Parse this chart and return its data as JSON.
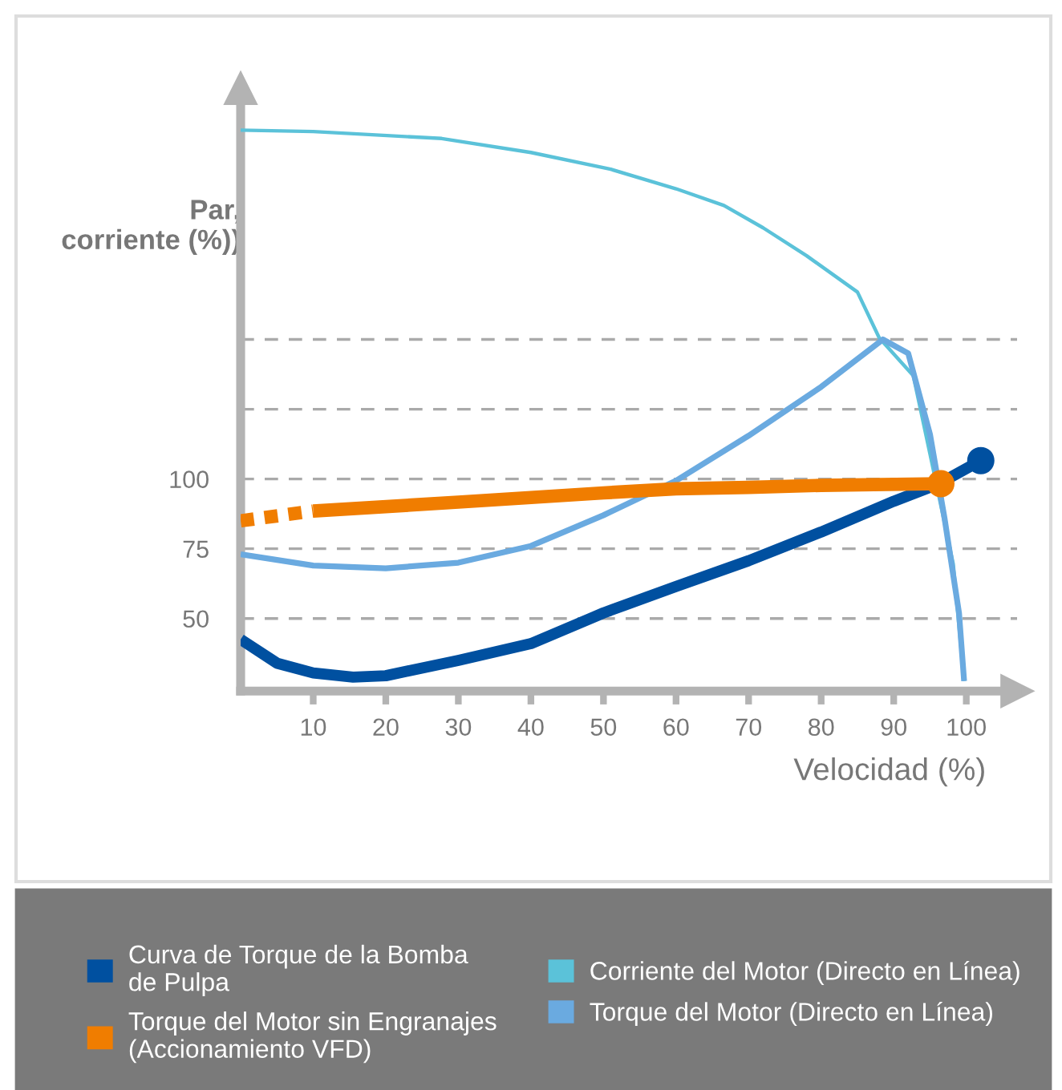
{
  "chart_data": {
    "type": "line",
    "xlabel": "Velocidad (%)",
    "ylabel": "Par,\ncorriente (%))",
    "xlim": [
      0,
      107
    ],
    "ylim": [
      24,
      240
    ],
    "xticks": [
      10,
      20,
      30,
      40,
      50,
      60,
      70,
      80,
      90,
      100
    ],
    "yticks": [
      50,
      75,
      100,
      {
        "value": 125,
        "label": null
      },
      {
        "value": 150,
        "label": null
      }
    ],
    "grid": "y",
    "legend": "bottom",
    "series": [
      {
        "name": "Curva de Torque de la Bomba\nde Pulpa",
        "color": "#0050a0",
        "x": [
          0,
          5,
          10,
          15.5,
          20,
          30,
          40,
          50,
          60,
          70,
          80,
          90,
          96,
          102
        ],
        "values": [
          42.5,
          34,
          30.5,
          29,
          29.5,
          35,
          41,
          52,
          61.5,
          70.7,
          81,
          92,
          98,
          106.6
        ]
      },
      {
        "name": "Torque del Motor sin Engranajes\n(Accionamiento VFD)",
        "color": "#f07d00",
        "x": [
          10,
          30,
          50,
          60,
          70,
          80,
          96.5
        ],
        "values": [
          88.5,
          91.7,
          95,
          96.5,
          97,
          97.7,
          98.3
        ]
      },
      {
        "name": "Corriente del Motor (Directo en Línea)",
        "color": "#5bc2d9",
        "x": [
          0,
          10,
          27.7,
          40,
          51,
          60,
          66.6,
          72,
          78,
          85,
          88,
          92.7,
          95,
          98.2,
          99.7
        ],
        "values": [
          225,
          224.5,
          222,
          217,
          211,
          204,
          198,
          190,
          180,
          167,
          150.6,
          137,
          109,
          69.5,
          27.6
        ]
      },
      {
        "name": "Torque del Motor (Directo en Línea)",
        "color": "#6aaae0",
        "x": [
          0,
          10,
          20,
          30,
          40,
          50,
          60,
          70,
          80,
          88.5,
          92,
          95,
          97,
          99,
          99.7
        ],
        "values": [
          73,
          69,
          68,
          70,
          76,
          87,
          99.4,
          115.5,
          133,
          150,
          145,
          116,
          86,
          52,
          27.6
        ]
      },
      {
        "color": "#f07d00",
        "line_style": "dotted",
        "x": [
          0,
          10
        ],
        "values": [
          85,
          88.5
        ]
      },
      {
        "type": "scatter",
        "color": "#0050a0",
        "x": [
          102
        ],
        "values": [
          106.6
        ]
      },
      {
        "type": "scatter",
        "color": "#f07d00",
        "x": [
          96.5
        ],
        "values": [
          98.3
        ]
      }
    ]
  }
}
